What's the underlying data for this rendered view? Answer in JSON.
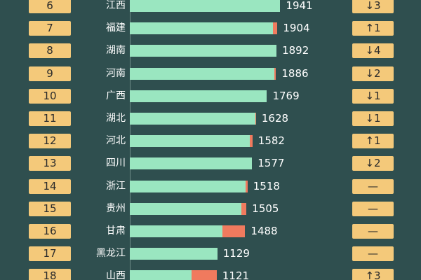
{
  "chart_data": {
    "type": "bar",
    "orientation": "horizontal",
    "xlim": [
      0,
      2000
    ],
    "columns": [
      "rank",
      "province",
      "value",
      "change"
    ],
    "colors": {
      "background": "#2f4f4f",
      "bar": "#9ae6c0",
      "bar_extra": "#f07a5e",
      "rank_box": "#f4c97a",
      "change_box": "#f4c97a"
    },
    "rows": [
      {
        "rank": "6",
        "province": "江西",
        "value": 1941,
        "value_label": "1941",
        "main": 1941,
        "extra": 0,
        "change": "↓3"
      },
      {
        "rank": "7",
        "province": "福建",
        "value": 1904,
        "value_label": "1904",
        "main": 1850,
        "extra": 54,
        "change": "↑1"
      },
      {
        "rank": "8",
        "province": "湖南",
        "value": 1892,
        "value_label": "1892",
        "main": 1892,
        "extra": 0,
        "change": "↓4"
      },
      {
        "rank": "9",
        "province": "河南",
        "value": 1886,
        "value_label": "1886",
        "main": 1862,
        "extra": 24,
        "change": "↓2"
      },
      {
        "rank": "10",
        "province": "广西",
        "value": 1769,
        "value_label": "1769",
        "main": 1769,
        "extra": 0,
        "change": "↓1"
      },
      {
        "rank": "11",
        "province": "湖北",
        "value": 1628,
        "value_label": "1628",
        "main": 1617,
        "extra": 11,
        "change": "↓1"
      },
      {
        "rank": "12",
        "province": "河北",
        "value": 1582,
        "value_label": "1582",
        "main": 1550,
        "extra": 32,
        "change": "↑1"
      },
      {
        "rank": "13",
        "province": "四川",
        "value": 1577,
        "value_label": "1577",
        "main": 1577,
        "extra": 0,
        "change": "↓2"
      },
      {
        "rank": "14",
        "province": "浙江",
        "value": 1518,
        "value_label": "1518",
        "main": 1496,
        "extra": 22,
        "change": "—"
      },
      {
        "rank": "15",
        "province": "贵州",
        "value": 1505,
        "value_label": "1505",
        "main": 1436,
        "extra": 69,
        "change": "—"
      },
      {
        "rank": "16",
        "province": "甘肃",
        "value": 1488,
        "value_label": "1488",
        "main": 1199,
        "extra": 289,
        "change": "—"
      },
      {
        "rank": "17",
        "province": "黑龙江",
        "value": 1129,
        "value_label": "1129",
        "main": 1129,
        "extra": 0,
        "change": "—"
      },
      {
        "rank": "18",
        "province": "山西",
        "value": 1121,
        "value_label": "1121",
        "main": 798,
        "extra": 323,
        "change": "↑3"
      }
    ]
  }
}
